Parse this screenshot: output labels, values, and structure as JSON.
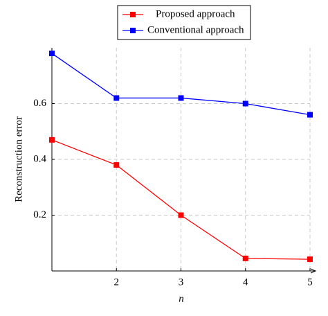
{
  "chart_data": {
    "type": "line",
    "x": [
      1,
      2,
      3,
      4,
      5
    ],
    "series": [
      {
        "name": "Proposed approach",
        "color": "#ff0000",
        "values": [
          0.47,
          0.38,
          0.2,
          0.045,
          0.042
        ]
      },
      {
        "name": "Conventional approach",
        "color": "#0000ff",
        "values": [
          0.78,
          0.62,
          0.62,
          0.6,
          0.56
        ]
      }
    ],
    "xlabel": "n",
    "ylabel": "Reconstruction error",
    "xlim": [
      1,
      5
    ],
    "ylim": [
      0,
      0.8
    ],
    "xticks": [
      2,
      3,
      4,
      5
    ],
    "yticks": [
      0.2,
      0.4,
      0.6
    ],
    "grid": true,
    "legend": "top"
  }
}
